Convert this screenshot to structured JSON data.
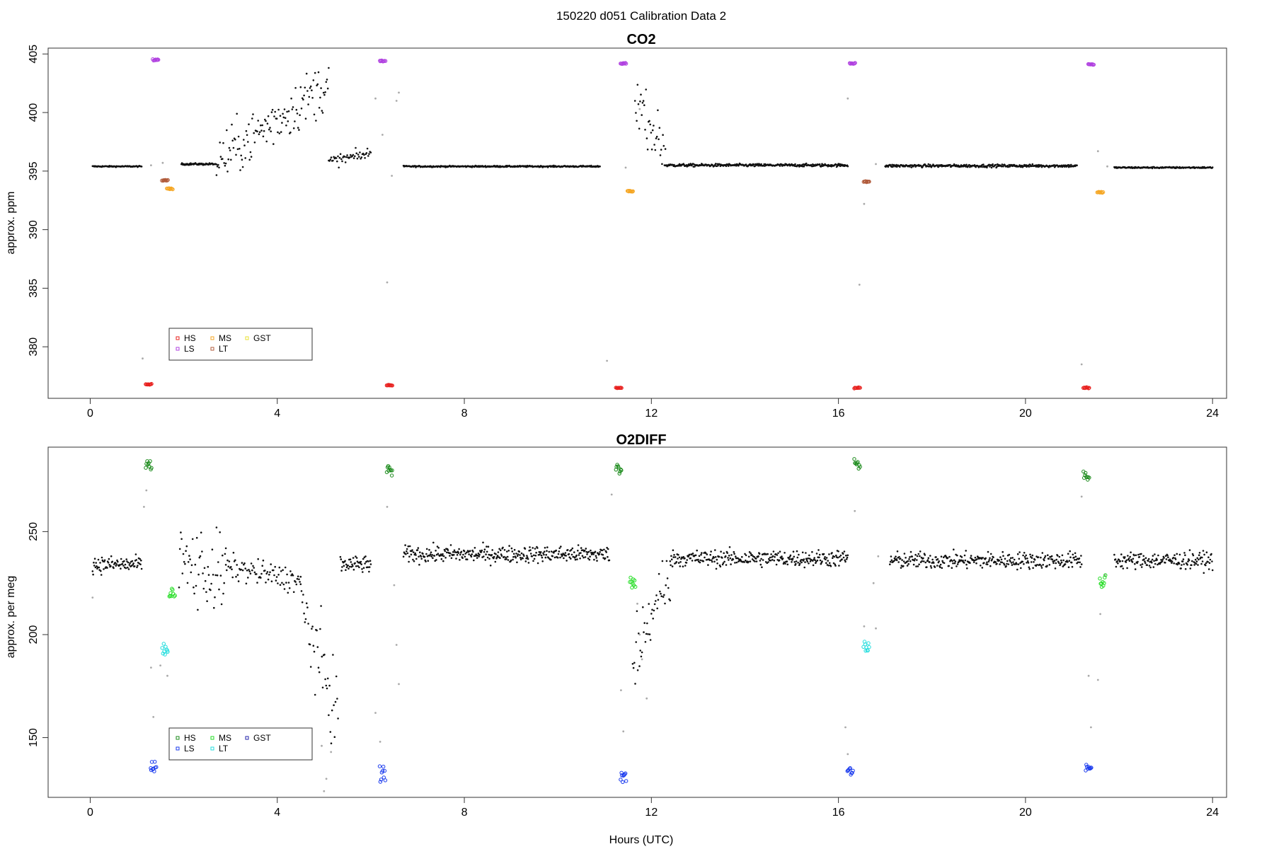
{
  "figure": {
    "title": "150220   d051   Calibration Data 2"
  },
  "chart_data": [
    {
      "type": "scatter",
      "title": "CO2",
      "xlabel": "",
      "ylabel": "approx. ppm",
      "xlim": [
        -0.9,
        24.3
      ],
      "ylim": [
        375.6,
        405.5
      ],
      "x_ticks": [
        0,
        4,
        8,
        12,
        16,
        20,
        24
      ],
      "y_ticks": [
        380,
        385,
        390,
        395,
        400,
        405
      ],
      "baseline_segments": [
        {
          "x": [
            0.05,
            1.1
          ],
          "y": 395.4,
          "noise": 0.05
        },
        {
          "x": [
            1.95,
            2.7
          ],
          "y": 395.6,
          "noise": 0.08
        },
        {
          "x": [
            6.7,
            10.9
          ],
          "y": 395.4,
          "noise": 0.06
        },
        {
          "x": [
            12.3,
            16.2
          ],
          "y": 395.5,
          "noise": 0.12
        },
        {
          "x": [
            17.0,
            21.1
          ],
          "y": 395.45,
          "noise": 0.12
        },
        {
          "x": [
            21.9,
            24.0
          ],
          "y": 395.3,
          "noise": 0.06
        }
      ],
      "scatter_segments": [
        {
          "x": [
            2.7,
            5.1
          ],
          "y_from": 395.8,
          "y_to": 402.5,
          "spread": 2.2
        },
        {
          "x": [
            5.1,
            6.0
          ],
          "y_from": 395.8,
          "y_to": 396.5,
          "spread": 0.5
        },
        {
          "x": [
            11.65,
            12.3
          ],
          "y_from": 401.5,
          "y_to": 396.5,
          "spread": 2.0
        }
      ],
      "transition_points": [
        {
          "x": 1.12,
          "y": 379.0
        },
        {
          "x": 1.3,
          "y": 395.5
        },
        {
          "x": 1.55,
          "y": 395.7
        },
        {
          "x": 6.1,
          "y": 401.2
        },
        {
          "x": 6.25,
          "y": 398.1
        },
        {
          "x": 6.35,
          "y": 385.5
        },
        {
          "x": 6.45,
          "y": 394.6
        },
        {
          "x": 6.55,
          "y": 401.0
        },
        {
          "x": 6.6,
          "y": 401.7
        },
        {
          "x": 11.05,
          "y": 378.8
        },
        {
          "x": 11.45,
          "y": 395.3
        },
        {
          "x": 11.75,
          "y": 400.3
        },
        {
          "x": 16.2,
          "y": 401.2
        },
        {
          "x": 16.45,
          "y": 385.3
        },
        {
          "x": 16.55,
          "y": 392.2
        },
        {
          "x": 16.8,
          "y": 395.6
        },
        {
          "x": 21.2,
          "y": 378.5
        },
        {
          "x": 21.55,
          "y": 396.7
        },
        {
          "x": 21.75,
          "y": 395.4
        }
      ],
      "series": [
        {
          "name": "HS",
          "color": "#e8201e",
          "clusters": [
            [
              1.25,
              376.8
            ],
            [
              6.4,
              376.7
            ],
            [
              11.3,
              376.5
            ],
            [
              16.4,
              376.5
            ],
            [
              21.3,
              376.5
            ]
          ]
        },
        {
          "name": "MS",
          "color": "#f5a623",
          "clusters": [
            [
              1.7,
              393.5
            ],
            [
              11.55,
              393.3
            ],
            [
              21.6,
              393.2
            ]
          ]
        },
        {
          "name": "LS",
          "color": "#b040e0",
          "clusters": [
            [
              1.4,
              404.5
            ],
            [
              6.25,
              404.4
            ],
            [
              11.4,
              404.2
            ],
            [
              16.3,
              404.2
            ],
            [
              21.4,
              404.1
            ]
          ]
        },
        {
          "name": "LT",
          "color": "#b05a3a",
          "clusters": [
            [
              1.6,
              394.2
            ],
            [
              16.6,
              394.1
            ]
          ]
        },
        {
          "name": "GST",
          "color": "#e8e030",
          "clusters": []
        }
      ],
      "legend": {
        "position": "bottom-left",
        "entries": [
          "HS",
          "MS",
          "LS",
          "LT",
          "GST"
        ]
      }
    },
    {
      "type": "scatter",
      "title": "O2DIFF",
      "xlabel": "Hours (UTC)",
      "ylabel": "approx. per meg",
      "xlim": [
        -0.9,
        24.3
      ],
      "ylim": [
        121,
        291
      ],
      "x_ticks": [
        0,
        4,
        8,
        12,
        16,
        20,
        24
      ],
      "y_ticks": [
        150,
        200,
        250
      ],
      "baseline_segments": [
        {
          "x": [
            0.05,
            1.1
          ],
          "y": 234,
          "noise": 4
        },
        {
          "x": [
            5.35,
            6.0
          ],
          "y": 234,
          "noise": 4
        },
        {
          "x": [
            6.7,
            11.1
          ],
          "y": 239,
          "noise": 4
        },
        {
          "x": [
            12.4,
            16.2
          ],
          "y": 237,
          "noise": 4
        },
        {
          "x": [
            17.1,
            21.2
          ],
          "y": 236,
          "noise": 4
        },
        {
          "x": [
            21.9,
            24.0
          ],
          "y": 236,
          "noise": 4
        }
      ],
      "scatter_segments": [
        {
          "x": [
            1.9,
            2.9
          ],
          "y_from": 235,
          "y_to": 228,
          "spread": 20
        },
        {
          "x": [
            2.9,
            4.5
          ],
          "y_from": 233,
          "y_to": 226,
          "spread": 6
        },
        {
          "x": [
            4.5,
            5.3
          ],
          "y_from": 215,
          "y_to": 160,
          "spread": 20
        },
        {
          "x": [
            11.6,
            12.4
          ],
          "y_from": 185,
          "y_to": 232,
          "spread": 14
        }
      ],
      "transition_points": [
        {
          "x": 0.05,
          "y": 218
        },
        {
          "x": 1.15,
          "y": 262
        },
        {
          "x": 1.2,
          "y": 270
        },
        {
          "x": 1.3,
          "y": 184
        },
        {
          "x": 1.35,
          "y": 160
        },
        {
          "x": 1.65,
          "y": 180
        },
        {
          "x": 1.5,
          "y": 185
        },
        {
          "x": 4.95,
          "y": 146
        },
        {
          "x": 5.0,
          "y": 124
        },
        {
          "x": 5.05,
          "y": 130
        },
        {
          "x": 5.15,
          "y": 143
        },
        {
          "x": 6.1,
          "y": 162
        },
        {
          "x": 6.2,
          "y": 148
        },
        {
          "x": 6.35,
          "y": 262
        },
        {
          "x": 6.5,
          "y": 224
        },
        {
          "x": 6.55,
          "y": 195
        },
        {
          "x": 6.6,
          "y": 176
        },
        {
          "x": 11.15,
          "y": 268
        },
        {
          "x": 11.35,
          "y": 173
        },
        {
          "x": 11.4,
          "y": 153
        },
        {
          "x": 11.7,
          "y": 215
        },
        {
          "x": 11.75,
          "y": 200
        },
        {
          "x": 11.8,
          "y": 188
        },
        {
          "x": 11.9,
          "y": 169
        },
        {
          "x": 16.15,
          "y": 155
        },
        {
          "x": 16.2,
          "y": 142
        },
        {
          "x": 16.35,
          "y": 260
        },
        {
          "x": 16.55,
          "y": 204
        },
        {
          "x": 16.75,
          "y": 225
        },
        {
          "x": 16.8,
          "y": 203
        },
        {
          "x": 16.85,
          "y": 238
        },
        {
          "x": 21.2,
          "y": 267
        },
        {
          "x": 21.35,
          "y": 180
        },
        {
          "x": 21.4,
          "y": 155
        },
        {
          "x": 21.55,
          "y": 178
        },
        {
          "x": 21.6,
          "y": 210
        },
        {
          "x": 21.7,
          "y": 229
        }
      ],
      "series": [
        {
          "name": "HS",
          "color": "#1a8a1a",
          "clusters": [
            [
              1.25,
              282
            ],
            [
              6.4,
              280
            ],
            [
              11.3,
              281
            ],
            [
              16.4,
              282
            ],
            [
              21.3,
              277
            ]
          ]
        },
        {
          "name": "MS",
          "color": "#22dd22",
          "clusters": [
            [
              1.75,
              220
            ],
            [
              11.6,
              225
            ],
            [
              21.65,
              226
            ]
          ]
        },
        {
          "name": "LS",
          "color": "#1a3aee",
          "clusters": [
            [
              1.35,
              136
            ],
            [
              6.25,
              132
            ],
            [
              11.4,
              131
            ],
            [
              16.25,
              134
            ],
            [
              21.35,
              135
            ]
          ]
        },
        {
          "name": "LT",
          "color": "#22dddd",
          "clusters": [
            [
              1.6,
              193
            ],
            [
              16.6,
              195
            ]
          ]
        },
        {
          "name": "GST",
          "color": "#2222aa",
          "clusters": []
        }
      ],
      "legend": {
        "position": "bottom-left",
        "entries": [
          "HS",
          "MS",
          "LS",
          "LT",
          "GST"
        ]
      }
    }
  ]
}
